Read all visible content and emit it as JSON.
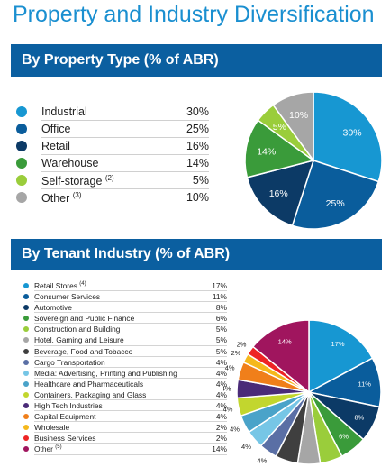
{
  "page": {
    "title": "Property and Industry Diversification"
  },
  "colors": {
    "banner": "#0b5fa0",
    "title": "#1a8fd0"
  },
  "sections": {
    "property": {
      "heading": "By Property Type (% of ABR)"
    },
    "tenant": {
      "heading": "By Tenant Industry (% of ABR)"
    }
  },
  "chart_data": [
    {
      "type": "pie",
      "title": "By Property Type (% of ABR)",
      "categories": [
        "Industrial",
        "Office",
        "Retail",
        "Warehouse",
        "Self-storage",
        "Other"
      ],
      "footnotes": [
        "",
        "",
        "",
        "",
        "(2)",
        "(3)"
      ],
      "values": [
        30,
        25,
        16,
        14,
        5,
        10
      ],
      "labels": [
        "30%",
        "25%",
        "16%",
        "14%",
        "5%",
        "10%"
      ],
      "colors": [
        "#1797d2",
        "#0a5d9c",
        "#0c3a66",
        "#3a9b3a",
        "#9acd3b",
        "#a6a6a6"
      ]
    },
    {
      "type": "pie",
      "title": "By Tenant Industry (% of ABR)",
      "categories": [
        "Retail Stores",
        "Consumer Services",
        "Automotive",
        "Sovereign and Public Finance",
        "Construction and Building",
        "Hotel, Gaming and Leisure",
        "Beverage, Food and Tobacco",
        "Cargo Transportation",
        "Media: Advertising, Printing and Publishing",
        "Healthcare and Pharmaceuticals",
        "Containers, Packaging and Glass",
        "High Tech Industries",
        "Capital Equipment",
        "Wholesale",
        "Business Services",
        "Other"
      ],
      "footnotes": [
        "(4)",
        "",
        "",
        "",
        "",
        "",
        "",
        "",
        "",
        "",
        "",
        "",
        "",
        "",
        "",
        "(5)"
      ],
      "values": [
        17,
        11,
        8,
        6,
        5,
        5,
        5,
        4,
        4,
        4,
        4,
        4,
        4,
        2,
        2,
        14
      ],
      "labels": [
        "17%",
        "11%",
        "8%",
        "6%",
        "5%",
        "5%",
        "5%",
        "4%",
        "4%",
        "4%",
        "4%",
        "4%",
        "4%",
        "2%",
        "2%",
        "14%"
      ],
      "colors": [
        "#1797d2",
        "#0a5d9c",
        "#0c3a66",
        "#3a9b3a",
        "#9acd3b",
        "#a6a6a6",
        "#3f3f3f",
        "#5a6fa5",
        "#76c6e6",
        "#4aa3c9",
        "#c2d62e",
        "#4a2b78",
        "#f07f1a",
        "#f5b81c",
        "#ee2424",
        "#a0155e"
      ]
    }
  ]
}
